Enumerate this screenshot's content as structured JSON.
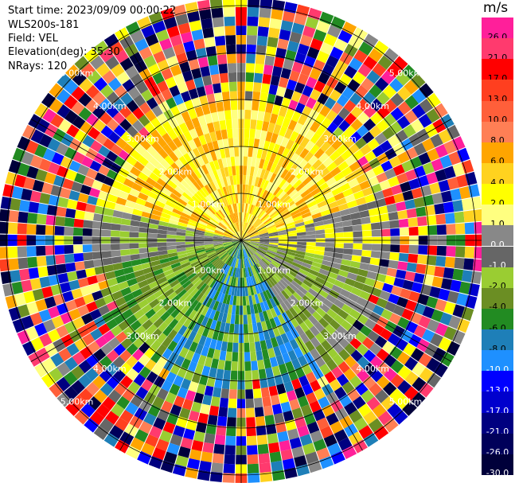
{
  "header": {
    "start_time": "Start time: 2023/09/09 00:00:22",
    "instrument": "WLS200s-181",
    "field": "Field: VEL",
    "elevation": "Elevation(deg): 35.30",
    "nrays": "NRays: 120"
  },
  "colorbar": {
    "unit": "m/s",
    "labels": [
      "26.0",
      "21.0",
      "17.0",
      "13.0",
      "10.0",
      "8.0",
      "6.0",
      "4.0",
      "2.0",
      "1.0",
      "0.0",
      "-1.0",
      "-2.0",
      "-4.0",
      "-6.0",
      "-8.0",
      "-10.0",
      "-13.0",
      "-17.0",
      "-21.0",
      "-26.0",
      "-30.0"
    ],
    "colors": [
      "#ff1f9a",
      "#ff3a6e",
      "#ff0000",
      "#ff3f1f",
      "#ff5f3a",
      "#ff7f55",
      "#ffa500",
      "#ffd21f",
      "#ffff00",
      "#ffff80",
      "#888888",
      "#666666",
      "#9acd32",
      "#6b8e23",
      "#228b22",
      "#1e7fb8",
      "#1e90ff",
      "#0000ff",
      "#0000cd",
      "#000080",
      "#00005a",
      "#00003a"
    ]
  },
  "range_rings": {
    "labels": [
      "1.00km",
      "2.00km",
      "3.00km",
      "4.00km",
      "5.00km"
    ]
  }
}
